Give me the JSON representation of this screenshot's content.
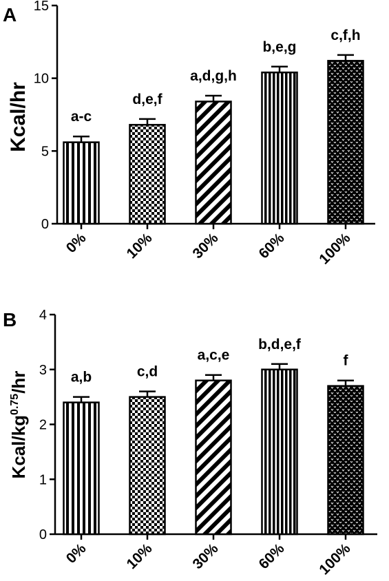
{
  "chart_data": [
    {
      "panel": "A",
      "type": "bar",
      "categories": [
        "0%",
        "10%",
        "30%",
        "60%",
        "100%"
      ],
      "values": [
        5.6,
        6.8,
        8.4,
        10.4,
        11.2
      ],
      "errors": [
        0.4,
        0.4,
        0.4,
        0.4,
        0.4
      ],
      "annotations": [
        "a-c",
        "d,e,f",
        "a,d,g,h",
        "b,e,g",
        "c,f,h"
      ],
      "patterns": [
        "vertical-stripes",
        "checkerboard",
        "diagonal-stripes",
        "vertical-stripes-dense",
        "dots"
      ],
      "ylabel": "Kcal/hr",
      "ylim": [
        0,
        15
      ],
      "yticks": [
        "0",
        "5",
        "10",
        "15"
      ],
      "grid": false
    },
    {
      "panel": "B",
      "type": "bar",
      "categories": [
        "0%",
        "10%",
        "30%",
        "60%",
        "100%"
      ],
      "values": [
        2.4,
        2.5,
        2.8,
        3.0,
        2.7
      ],
      "errors": [
        0.1,
        0.1,
        0.1,
        0.1,
        0.1
      ],
      "annotations": [
        "a,b",
        "c,d",
        "a,c,e",
        "b,d,e,f",
        "f"
      ],
      "patterns": [
        "vertical-stripes",
        "checkerboard",
        "diagonal-stripes",
        "vertical-stripes-dense",
        "dots"
      ],
      "ylabel_base": "Kcal/kg",
      "ylabel_sup": "0.75",
      "ylabel_tail": "/hr",
      "ylim": [
        0,
        4
      ],
      "yticks": [
        "0",
        "1",
        "2",
        "3",
        "4"
      ],
      "grid": false
    }
  ],
  "colors": {
    "bar_stroke": "#000000",
    "pattern": "#000000",
    "background": "#ffffff"
  }
}
